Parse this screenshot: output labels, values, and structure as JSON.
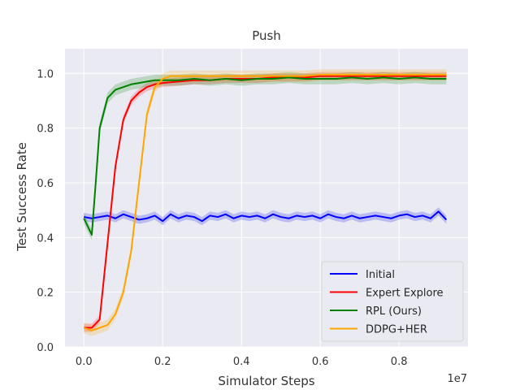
{
  "chart_data": {
    "type": "line",
    "title": "Push",
    "xlabel": "Simulator Steps",
    "ylabel": "Test Success Rate",
    "x_offset_label": "1e7",
    "xlim": [
      -0.048,
      0.975
    ],
    "ylim": [
      0.0,
      1.09
    ],
    "xticks": [
      0.0,
      0.2,
      0.4,
      0.6,
      0.8
    ],
    "xtick_labels": [
      "0.0",
      "0.2",
      "0.4",
      "0.6",
      "0.8"
    ],
    "yticks": [
      0.0,
      0.2,
      0.4,
      0.6,
      0.8,
      1.0
    ],
    "ytick_labels": [
      "0.0",
      "0.2",
      "0.4",
      "0.6",
      "0.8",
      "1.0"
    ],
    "grid": true,
    "legend_position": "lower-right",
    "series": [
      {
        "name": "Initial",
        "color": "#0000ff",
        "x": [
          0.0,
          0.02,
          0.04,
          0.06,
          0.08,
          0.1,
          0.12,
          0.14,
          0.16,
          0.18,
          0.2,
          0.22,
          0.24,
          0.26,
          0.28,
          0.3,
          0.32,
          0.34,
          0.36,
          0.38,
          0.4,
          0.42,
          0.44,
          0.46,
          0.48,
          0.5,
          0.52,
          0.54,
          0.56,
          0.58,
          0.6,
          0.62,
          0.64,
          0.66,
          0.68,
          0.7,
          0.72,
          0.74,
          0.76,
          0.78,
          0.8,
          0.82,
          0.84,
          0.86,
          0.88,
          0.9,
          0.92
        ],
        "y": [
          0.475,
          0.47,
          0.475,
          0.48,
          0.47,
          0.485,
          0.475,
          0.465,
          0.47,
          0.48,
          0.46,
          0.485,
          0.47,
          0.48,
          0.475,
          0.46,
          0.48,
          0.475,
          0.485,
          0.47,
          0.48,
          0.475,
          0.48,
          0.47,
          0.485,
          0.475,
          0.47,
          0.48,
          0.475,
          0.48,
          0.47,
          0.485,
          0.475,
          0.47,
          0.48,
          0.47,
          0.475,
          0.48,
          0.475,
          0.47,
          0.48,
          0.485,
          0.475,
          0.48,
          0.47,
          0.495,
          0.465
        ],
        "band": 0.015
      },
      {
        "name": "Expert Explore",
        "color": "#ff0000",
        "x": [
          0.0,
          0.02,
          0.04,
          0.06,
          0.08,
          0.1,
          0.12,
          0.14,
          0.16,
          0.18,
          0.2,
          0.24,
          0.28,
          0.32,
          0.36,
          0.4,
          0.44,
          0.48,
          0.52,
          0.56,
          0.6,
          0.64,
          0.68,
          0.72,
          0.76,
          0.8,
          0.84,
          0.88,
          0.92
        ],
        "y": [
          0.07,
          0.07,
          0.1,
          0.38,
          0.66,
          0.83,
          0.9,
          0.93,
          0.95,
          0.96,
          0.965,
          0.97,
          0.975,
          0.975,
          0.98,
          0.98,
          0.98,
          0.985,
          0.985,
          0.985,
          0.99,
          0.99,
          0.99,
          0.99,
          0.99,
          0.99,
          0.99,
          0.99,
          0.99
        ],
        "band": 0.015
      },
      {
        "name": "RPL (Ours)",
        "color": "#008000",
        "x": [
          0.0,
          0.01,
          0.02,
          0.03,
          0.04,
          0.06,
          0.08,
          0.1,
          0.12,
          0.14,
          0.16,
          0.18,
          0.2,
          0.24,
          0.28,
          0.32,
          0.36,
          0.4,
          0.44,
          0.48,
          0.52,
          0.56,
          0.6,
          0.64,
          0.68,
          0.72,
          0.76,
          0.8,
          0.84,
          0.88,
          0.92
        ],
        "y": [
          0.47,
          0.44,
          0.41,
          0.6,
          0.8,
          0.91,
          0.94,
          0.95,
          0.96,
          0.965,
          0.97,
          0.975,
          0.975,
          0.975,
          0.98,
          0.975,
          0.98,
          0.975,
          0.98,
          0.98,
          0.985,
          0.98,
          0.98,
          0.98,
          0.985,
          0.98,
          0.985,
          0.98,
          0.985,
          0.98,
          0.98
        ],
        "band": 0.02
      },
      {
        "name": "DDPG+HER",
        "color": "#ffa500",
        "x": [
          0.0,
          0.02,
          0.04,
          0.06,
          0.08,
          0.1,
          0.12,
          0.14,
          0.16,
          0.18,
          0.2,
          0.22,
          0.24,
          0.28,
          0.32,
          0.36,
          0.4,
          0.44,
          0.48,
          0.52,
          0.56,
          0.6,
          0.64,
          0.68,
          0.72,
          0.76,
          0.8,
          0.84,
          0.88,
          0.92
        ],
        "y": [
          0.07,
          0.06,
          0.07,
          0.08,
          0.12,
          0.2,
          0.35,
          0.6,
          0.85,
          0.95,
          0.98,
          0.99,
          0.99,
          0.99,
          0.99,
          0.99,
          0.99,
          0.99,
          0.99,
          0.99,
          0.99,
          0.995,
          0.995,
          0.995,
          0.995,
          0.995,
          0.995,
          0.995,
          0.995,
          0.995
        ],
        "band": 0.02
      }
    ]
  }
}
